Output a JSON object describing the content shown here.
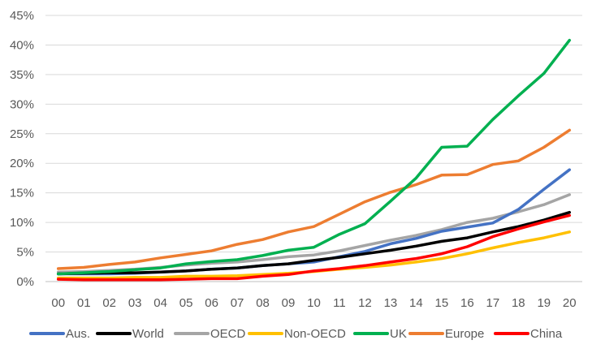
{
  "chart_data": {
    "type": "line",
    "categories": [
      "00",
      "01",
      "02",
      "03",
      "04",
      "05",
      "06",
      "07",
      "08",
      "09",
      "10",
      "11",
      "12",
      "13",
      "14",
      "15",
      "16",
      "17",
      "18",
      "19",
      "20"
    ],
    "ylim": [
      0,
      45
    ],
    "y_ticks": [
      0,
      5,
      10,
      15,
      20,
      25,
      30,
      35,
      40,
      45
    ],
    "y_tick_labels": [
      "0%",
      "5%",
      "10%",
      "15%",
      "20%",
      "25%",
      "30%",
      "35%",
      "40%",
      "45%"
    ],
    "grid": "horizontal",
    "legend_position": "bottom",
    "series": [
      {
        "name": "Aus.",
        "color": "#4472C4",
        "values": [
          1.3,
          1.3,
          1.3,
          1.4,
          1.6,
          1.8,
          2.1,
          2.3,
          2.7,
          3.0,
          3.3,
          4.2,
          5.1,
          6.4,
          7.3,
          8.5,
          9.2,
          9.9,
          12.2,
          15.6,
          18.9
        ]
      },
      {
        "name": "World",
        "color": "#000000",
        "values": [
          1.3,
          1.4,
          1.5,
          1.5,
          1.6,
          1.8,
          2.1,
          2.3,
          2.7,
          3.0,
          3.6,
          4.1,
          4.7,
          5.3,
          6.0,
          6.8,
          7.4,
          8.4,
          9.3,
          10.4,
          11.7
        ]
      },
      {
        "name": "OECD",
        "color": "#A5A5A5",
        "values": [
          1.6,
          1.7,
          1.9,
          2.1,
          2.4,
          2.8,
          3.1,
          3.3,
          3.7,
          4.2,
          4.5,
          5.2,
          6.1,
          7.0,
          7.8,
          8.8,
          10.0,
          10.7,
          11.8,
          13.0,
          14.7
        ]
      },
      {
        "name": "Non-OECD",
        "color": "#FFC000",
        "values": [
          0.6,
          0.6,
          0.6,
          0.7,
          0.7,
          0.9,
          0.9,
          1.0,
          1.2,
          1.4,
          1.7,
          2.1,
          2.4,
          2.8,
          3.3,
          3.9,
          4.7,
          5.7,
          6.6,
          7.4,
          8.4
        ]
      },
      {
        "name": "UK",
        "color": "#00B050",
        "values": [
          1.3,
          1.5,
          1.7,
          2.0,
          2.3,
          3.0,
          3.4,
          3.7,
          4.4,
          5.3,
          5.8,
          8.0,
          9.8,
          13.6,
          17.5,
          22.7,
          22.9,
          27.4,
          31.4,
          35.2,
          40.8
        ]
      },
      {
        "name": "Europe",
        "color": "#ED7D31",
        "values": [
          2.2,
          2.4,
          2.9,
          3.3,
          4.0,
          4.6,
          5.2,
          6.3,
          7.1,
          8.4,
          9.3,
          11.4,
          13.5,
          15.1,
          16.4,
          18.0,
          18.1,
          19.8,
          20.4,
          22.7,
          25.6
        ]
      },
      {
        "name": "China",
        "color": "#FF0000",
        "values": [
          0.4,
          0.3,
          0.3,
          0.3,
          0.3,
          0.4,
          0.5,
          0.5,
          0.9,
          1.2,
          1.8,
          2.2,
          2.7,
          3.3,
          3.9,
          4.7,
          5.9,
          7.6,
          8.9,
          10.1,
          11.2
        ]
      }
    ]
  }
}
